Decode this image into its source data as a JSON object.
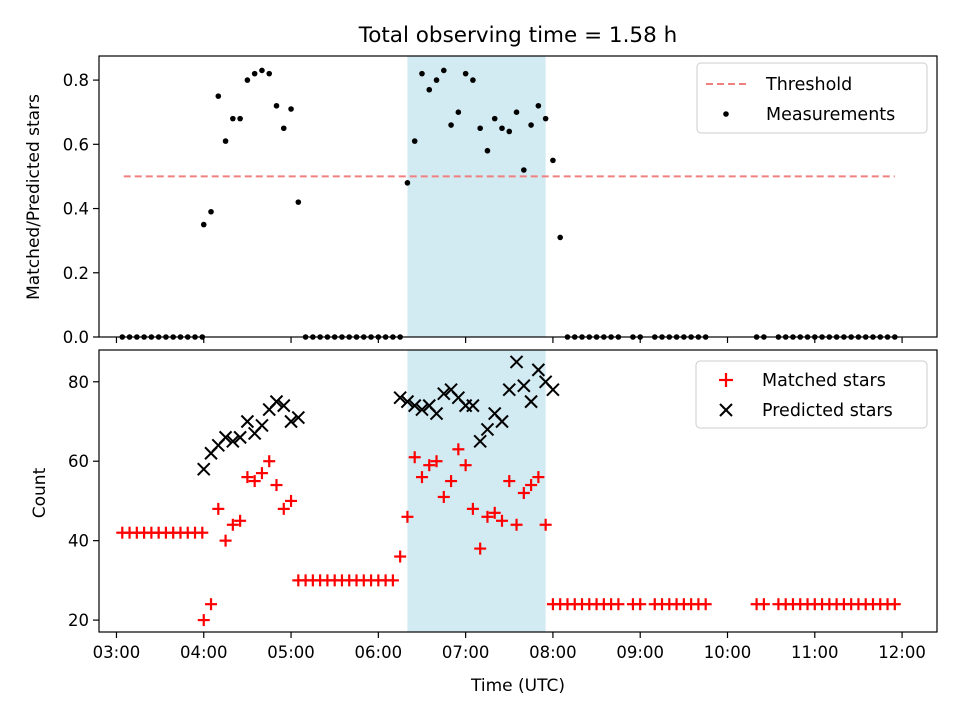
{
  "chart_data": {
    "title": "Total observing time = 1.58 h",
    "xlabel": "Time (UTC)",
    "x_ticks": [
      "03:00",
      "04:00",
      "05:00",
      "06:00",
      "07:00",
      "08:00",
      "09:00",
      "10:00",
      "11:00",
      "12:00"
    ],
    "xlim": [
      "02:48",
      "12:24"
    ],
    "highlight_span": [
      "06:20",
      "07:55"
    ],
    "highlight_color": "#add8e6",
    "panels": [
      {
        "type": "scatter",
        "ylabel": "Matched/Predicted stars",
        "ylim": [
          0,
          0.875
        ],
        "y_ticks": [
          "0.0",
          "0.2",
          "0.4",
          "0.6",
          "0.8"
        ],
        "legend_position": "top-right",
        "threshold": {
          "name": "Threshold",
          "value": 0.5,
          "x_range": [
            "03:05",
            "11:55"
          ],
          "color": "#f08080"
        },
        "series": [
          {
            "name": "Measurements",
            "color": "#000000",
            "marker": "dot",
            "x": [
              "03:04",
              "03:09",
              "03:14",
              "03:19",
              "03:24",
              "03:29",
              "03:34",
              "03:39",
              "03:44",
              "03:49",
              "03:54",
              "03:59",
              "04:00",
              "04:05",
              "04:10",
              "04:15",
              "04:20",
              "04:25",
              "04:30",
              "04:35",
              "04:40",
              "04:45",
              "04:50",
              "04:55",
              "05:00",
              "05:05",
              "05:10",
              "05:15",
              "05:20",
              "05:25",
              "05:30",
              "05:35",
              "05:40",
              "05:45",
              "05:50",
              "05:55",
              "06:00",
              "06:05",
              "06:10",
              "06:15",
              "06:20",
              "06:25",
              "06:30",
              "06:35",
              "06:40",
              "06:45",
              "06:50",
              "06:55",
              "07:00",
              "07:05",
              "07:10",
              "07:15",
              "07:20",
              "07:25",
              "07:30",
              "07:35",
              "07:40",
              "07:45",
              "07:50",
              "07:55",
              "08:00",
              "08:05",
              "08:10",
              "08:15",
              "08:20",
              "08:25",
              "08:30",
              "08:35",
              "08:40",
              "08:45",
              "08:55",
              "09:00",
              "09:10",
              "09:15",
              "09:20",
              "09:25",
              "09:30",
              "09:35",
              "09:40",
              "09:45",
              "10:20",
              "10:25",
              "10:35",
              "10:40",
              "10:45",
              "10:50",
              "10:55",
              "11:00",
              "11:05",
              "11:10",
              "11:15",
              "11:20",
              "11:25",
              "11:30",
              "11:35",
              "11:40",
              "11:45",
              "11:50",
              "11:55"
            ],
            "y": [
              0,
              0,
              0,
              0,
              0,
              0,
              0,
              0,
              0,
              0,
              0,
              0,
              0.35,
              0.39,
              0.75,
              0.61,
              0.68,
              0.68,
              0.8,
              0.82,
              0.83,
              0.82,
              0.72,
              0.65,
              0.71,
              0.42,
              0,
              0,
              0,
              0,
              0,
              0,
              0,
              0,
              0,
              0,
              0,
              0,
              0,
              0,
              0.48,
              0.61,
              0.82,
              0.77,
              0.8,
              0.83,
              0.66,
              0.7,
              0.82,
              0.8,
              0.65,
              0.58,
              0.68,
              0.65,
              0.64,
              0.7,
              0.52,
              0.66,
              0.72,
              0.68,
              0.55,
              0.31,
              0,
              0,
              0,
              0,
              0,
              0,
              0,
              0,
              0,
              0,
              0,
              0,
              0,
              0,
              0,
              0,
              0,
              0,
              0,
              0,
              0,
              0,
              0,
              0,
              0,
              0,
              0,
              0,
              0,
              0,
              0,
              0,
              0,
              0,
              0,
              0,
              0
            ]
          }
        ]
      },
      {
        "type": "scatter",
        "ylabel": "Count",
        "ylim": [
          17,
          88
        ],
        "y_ticks": [
          "20",
          "40",
          "60",
          "80"
        ],
        "legend_position": "top-right",
        "series": [
          {
            "name": "Matched stars",
            "color": "#ff0000",
            "marker": "plus",
            "x": [
              "03:04",
              "03:09",
              "03:14",
              "03:19",
              "03:24",
              "03:29",
              "03:34",
              "03:39",
              "03:44",
              "03:49",
              "03:54",
              "03:59",
              "04:00",
              "04:05",
              "04:10",
              "04:15",
              "04:20",
              "04:25",
              "04:30",
              "04:35",
              "04:40",
              "04:45",
              "04:50",
              "04:55",
              "05:00",
              "05:05",
              "05:10",
              "05:15",
              "05:20",
              "05:25",
              "05:30",
              "05:35",
              "05:40",
              "05:45",
              "05:50",
              "05:55",
              "06:00",
              "06:05",
              "06:10",
              "06:15",
              "06:20",
              "06:25",
              "06:30",
              "06:35",
              "06:40",
              "06:45",
              "06:50",
              "06:55",
              "07:00",
              "07:05",
              "07:10",
              "07:15",
              "07:20",
              "07:25",
              "07:30",
              "07:35",
              "07:40",
              "07:45",
              "07:50",
              "07:55",
              "08:00",
              "08:05",
              "08:10",
              "08:15",
              "08:20",
              "08:25",
              "08:30",
              "08:35",
              "08:40",
              "08:45",
              "08:55",
              "09:00",
              "09:10",
              "09:15",
              "09:20",
              "09:25",
              "09:30",
              "09:35",
              "09:40",
              "09:45",
              "10:20",
              "10:25",
              "10:35",
              "10:40",
              "10:45",
              "10:50",
              "10:55",
              "11:00",
              "11:05",
              "11:10",
              "11:15",
              "11:20",
              "11:25",
              "11:30",
              "11:35",
              "11:40",
              "11:45",
              "11:50",
              "11:55"
            ],
            "y": [
              42,
              42,
              42,
              42,
              42,
              42,
              42,
              42,
              42,
              42,
              42,
              42,
              20,
              24,
              48,
              40,
              44,
              45,
              56,
              55,
              57,
              60,
              54,
              48,
              50,
              30,
              30,
              30,
              30,
              30,
              30,
              30,
              30,
              30,
              30,
              30,
              30,
              30,
              30,
              36,
              46,
              61,
              56,
              59,
              60,
              51,
              55,
              63,
              59,
              48,
              38,
              46,
              47,
              45,
              55,
              44,
              52,
              54,
              56,
              44,
              24,
              24,
              24,
              24,
              24,
              24,
              24,
              24,
              24,
              24,
              24,
              24,
              24,
              24,
              24,
              24,
              24,
              24,
              24,
              24,
              24,
              24,
              24,
              24,
              24,
              24,
              24,
              24,
              24,
              24,
              24,
              24,
              24,
              24,
              24,
              24,
              24,
              24,
              24
            ]
          },
          {
            "name": "Predicted stars",
            "color": "#000000",
            "marker": "x",
            "x": [
              "04:00",
              "04:05",
              "04:10",
              "04:15",
              "04:20",
              "04:25",
              "04:30",
              "04:35",
              "04:40",
              "04:45",
              "04:50",
              "04:55",
              "05:00",
              "05:05",
              "06:15",
              "06:20",
              "06:25",
              "06:30",
              "06:35",
              "06:40",
              "06:45",
              "06:50",
              "06:55",
              "07:00",
              "07:05",
              "07:10",
              "07:15",
              "07:20",
              "07:25",
              "07:30",
              "07:35",
              "07:40",
              "07:45",
              "07:50",
              "07:55",
              "08:00"
            ],
            "y": [
              58,
              62,
              64,
              66,
              65,
              66,
              70,
              67,
              69,
              73,
              75,
              74,
              70,
              71,
              76,
              75,
              74,
              73,
              74,
              72,
              77,
              78,
              76,
              74,
              74,
              65,
              68,
              72,
              70,
              78,
              85,
              79,
              75,
              83,
              80,
              78
            ]
          }
        ]
      }
    ]
  }
}
